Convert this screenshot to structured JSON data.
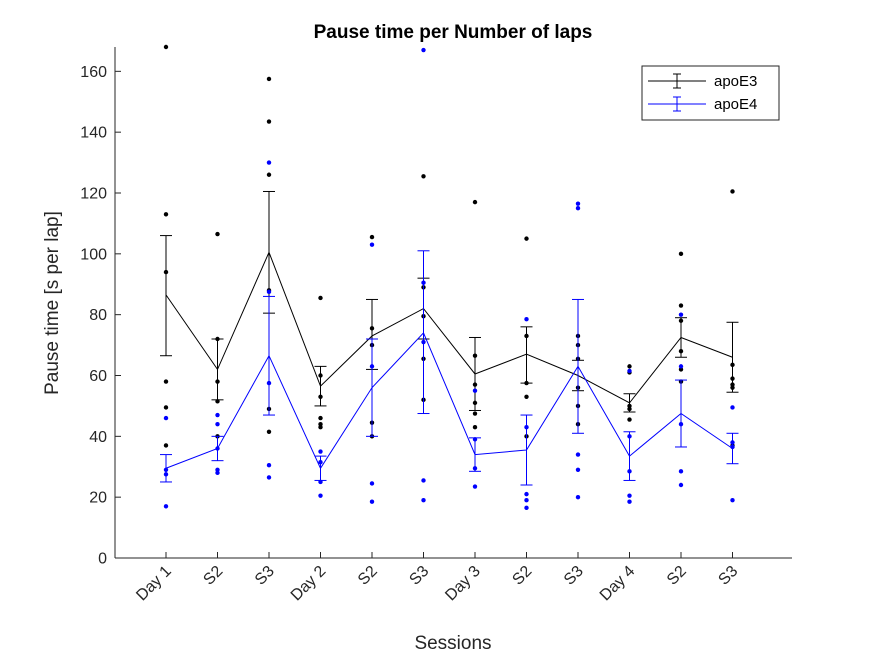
{
  "chart_data": {
    "type": "line",
    "title": "Pause time per Number of laps",
    "xlabel": "Sessions",
    "ylabel": "Pause time [s per lap]",
    "categories": [
      "Day 1",
      "S2",
      "S3",
      "Day 2",
      "S2",
      "S3",
      "Day 3",
      "S2",
      "S3",
      "Day 4",
      "S2",
      "S3"
    ],
    "ylim": [
      0,
      168
    ],
    "yticks": [
      0,
      20,
      40,
      60,
      80,
      100,
      120,
      140,
      160
    ],
    "grid": false,
    "legend_position": "top-right",
    "series": [
      {
        "name": "apoE3",
        "color": "#000000",
        "mean": [
          86.5,
          62,
          100.5,
          56.5,
          73,
          82,
          60.5,
          67,
          60,
          51,
          72.5,
          66
        ],
        "upper": [
          106,
          72,
          120.5,
          63,
          85,
          92,
          72.5,
          76,
          65,
          54,
          79,
          77.5
        ],
        "lower": [
          66.5,
          52,
          80.5,
          50,
          62,
          72,
          48.5,
          57.5,
          55,
          48,
          66,
          54.5
        ],
        "points": [
          [
            168,
            113,
            94,
            58,
            49.5,
            37
          ],
          [
            106.5,
            72,
            58,
            51.5,
            40
          ],
          [
            157.5,
            143.5,
            126,
            88,
            49,
            41.5
          ],
          [
            85.5,
            60,
            53,
            46,
            44,
            43
          ],
          [
            105.5,
            75.5,
            70,
            44.5,
            40
          ],
          [
            125.5,
            89,
            79.5,
            65.5,
            52
          ],
          [
            117,
            66.5,
            57,
            51,
            47.5,
            43
          ],
          [
            105,
            73,
            53,
            40,
            57.5
          ],
          [
            73,
            70,
            65.5,
            56,
            50,
            44
          ],
          [
            63,
            61,
            50,
            49,
            45.5
          ],
          [
            100,
            83,
            78,
            68,
            62,
            58
          ],
          [
            120.5,
            63.5,
            59,
            57,
            56,
            37
          ]
        ]
      },
      {
        "name": "apoE4",
        "color": "#0000ff",
        "mean": [
          29.5,
          36,
          66.5,
          29.5,
          56,
          74,
          34,
          35.5,
          63,
          33.5,
          47.5,
          36
        ],
        "upper": [
          34,
          40,
          86,
          33.5,
          72,
          101,
          39.5,
          47,
          85,
          41.5,
          58.5,
          41
        ],
        "lower": [
          25,
          32,
          47,
          25.5,
          40,
          47.5,
          28.5,
          24,
          41,
          25.5,
          36.5,
          31
        ],
        "points": [
          [
            46,
            29,
            27.5,
            17
          ],
          [
            47,
            44,
            36,
            29,
            28
          ],
          [
            130,
            87.5,
            57.5,
            30.5,
            26.5
          ],
          [
            35,
            31.5,
            25,
            20.5
          ],
          [
            103,
            63,
            24.5,
            18.5
          ],
          [
            167,
            90.5,
            71,
            25.5,
            19
          ],
          [
            55,
            39,
            29.5,
            23.5
          ],
          [
            78.5,
            43,
            21,
            19,
            16.5
          ],
          [
            116.5,
            115,
            34,
            29,
            20
          ],
          [
            61.5,
            40,
            28.5,
            20.5,
            18.5
          ],
          [
            80,
            63,
            44,
            28.5,
            24
          ],
          [
            49.5,
            38,
            36.5,
            19
          ]
        ]
      }
    ]
  }
}
